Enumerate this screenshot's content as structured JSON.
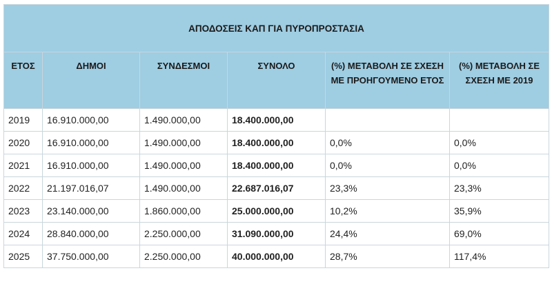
{
  "table": {
    "title": "ΑΠΟΔΟΣΕΙΣ ΚΑΠ ΓΙΑ ΠΥΡΟΠΡΟΣΤΑΣΙΑ",
    "headers": [
      "ΕΤΟΣ",
      "ΔΗΜΟΙ",
      "ΣΥΝΔΕΣΜΟΙ",
      "ΣΥΝΟΛΟ",
      "(%) ΜΕΤΑΒΟΛΗ ΣΕ ΣΧΕΣΗ ΜΕ ΠΡΟΗΓΟΥΜΕΝΟ ΕΤΟΣ",
      "(%) ΜΕΤΑΒΟΛΗ ΣΕ ΣΧΕΣΗ ΜΕ 2019"
    ],
    "rows": [
      [
        "2019",
        "16.910.000,00",
        "1.490.000,00",
        "18.400.000,00",
        "",
        ""
      ],
      [
        "2020",
        "16.910.000,00",
        "1.490.000,00",
        "18.400.000,00",
        "0,0%",
        "0,0%"
      ],
      [
        "2021",
        "16.910.000,00",
        "1.490.000,00",
        "18.400.000,00",
        "0,0%",
        "0,0%"
      ],
      [
        "2022",
        "21.197.016,07",
        "1.490.000,00",
        "22.687.016,07",
        "23,3%",
        "23,3%"
      ],
      [
        "2023",
        "23.140.000,00",
        "1.860.000,00",
        "25.000.000,00",
        "10,2%",
        "35,9%"
      ],
      [
        "2024",
        "28.840.000,00",
        "2.250.000,00",
        "31.090.000,00",
        "24,4%",
        "69,0%"
      ],
      [
        "2025",
        "37.750.000,00",
        "2.250.000,00",
        "40.000.000,00",
        "28,7%",
        "117,4%"
      ]
    ]
  }
}
